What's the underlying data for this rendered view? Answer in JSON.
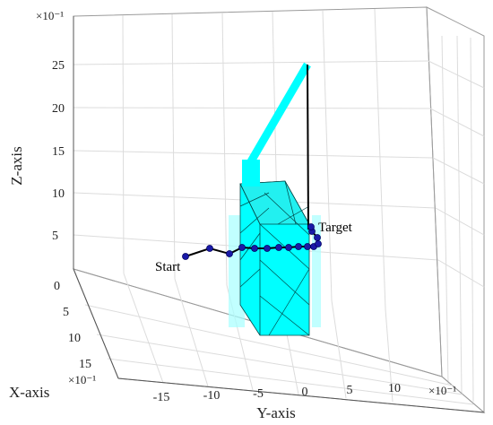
{
  "chart_data": {
    "type": "scatter",
    "axes": {
      "x": {
        "label": "X-axis",
        "ticks": [
          "0",
          "5",
          "10",
          "15"
        ],
        "exponent": "×10⁻¹",
        "range": [
          0,
          17
        ]
      },
      "y": {
        "label": "Y-axis",
        "ticks": [
          "-15",
          "-10",
          "-5",
          "0",
          "5",
          "10"
        ],
        "exponent": "×10⁻¹",
        "range": [
          -20,
          15
        ]
      },
      "z": {
        "label": "Z-axis",
        "ticks": [
          "5",
          "10",
          "15",
          "20",
          "25"
        ],
        "exponent": "×10⁻¹",
        "range": [
          0,
          29
        ]
      }
    },
    "grid": true,
    "annotations": {
      "start": "Start",
      "target": "Target"
    },
    "colors": {
      "path_line": "#000000",
      "path_marker": "#1a1aa8",
      "obstacle": "#00ffff",
      "arm": "#00ffff",
      "grid": "#dcdcdc"
    },
    "path_points": [
      {
        "screen_x": 207,
        "screen_y": 286
      },
      {
        "screen_x": 234,
        "screen_y": 277
      },
      {
        "screen_x": 256,
        "screen_y": 283
      },
      {
        "screen_x": 270,
        "screen_y": 276
      },
      {
        "screen_x": 284,
        "screen_y": 277
      },
      {
        "screen_x": 298,
        "screen_y": 277
      },
      {
        "screen_x": 311,
        "screen_y": 276
      },
      {
        "screen_x": 322,
        "screen_y": 276
      },
      {
        "screen_x": 333,
        "screen_y": 275
      },
      {
        "screen_x": 343,
        "screen_y": 275
      },
      {
        "screen_x": 350,
        "screen_y": 275
      },
      {
        "screen_x": 355,
        "screen_y": 272
      },
      {
        "screen_x": 354,
        "screen_y": 265
      },
      {
        "screen_x": 348,
        "screen_y": 258
      },
      {
        "screen_x": 347,
        "screen_y": 253
      }
    ]
  }
}
